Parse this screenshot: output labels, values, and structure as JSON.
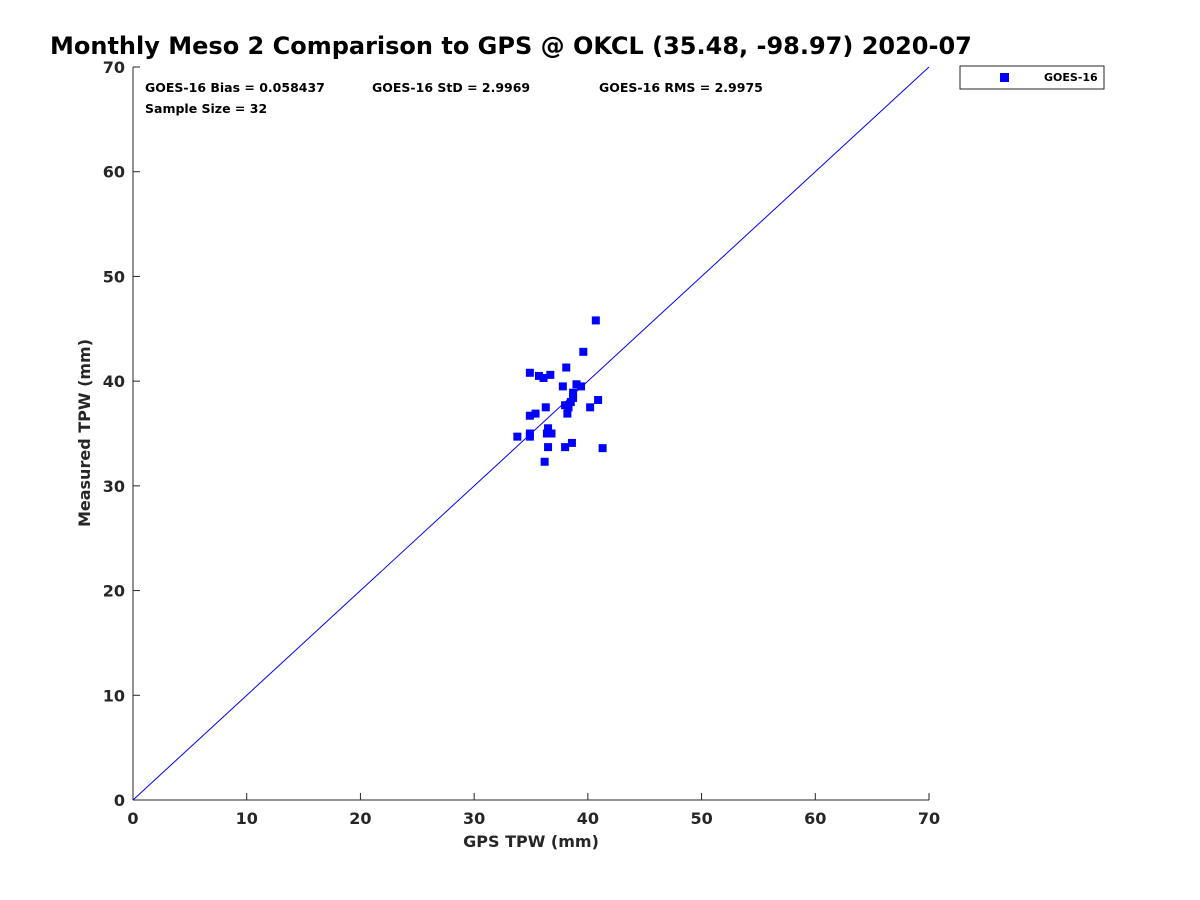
{
  "chart_data": {
    "type": "scatter",
    "title": "Monthly Meso 2 Comparison to GPS @ OKCL (35.48, -98.97) 2020-07",
    "xlabel": "GPS TPW (mm)",
    "ylabel": "Measured TPW (mm)",
    "xlim": [
      0,
      70
    ],
    "ylim": [
      0,
      70
    ],
    "xticks": [
      "0",
      "10",
      "20",
      "30",
      "40",
      "50",
      "60",
      "70"
    ],
    "yticks": [
      "0",
      "10",
      "20",
      "30",
      "40",
      "50",
      "60",
      "70"
    ],
    "grid": false,
    "legend_position": "outside-top-right",
    "reference_line": {
      "x": [
        0,
        70
      ],
      "y": [
        0,
        70
      ],
      "color": "#0000ff"
    },
    "stats": {
      "bias": "GOES-16 Bias = 0.058437",
      "std": "GOES-16 StD = 2.9969",
      "rms": "GOES-16 RMS = 2.9975",
      "sample_size": "Sample Size = 32"
    },
    "series": [
      {
        "name": "GOES-16",
        "color": "#0000ff",
        "marker": "square",
        "points": [
          [
            40.7,
            45.8
          ],
          [
            39.6,
            42.8
          ],
          [
            38.1,
            41.3
          ],
          [
            34.9,
            40.8
          ],
          [
            35.7,
            40.5
          ],
          [
            36.1,
            40.3
          ],
          [
            36.7,
            40.6
          ],
          [
            37.8,
            39.5
          ],
          [
            39.0,
            39.7
          ],
          [
            39.4,
            39.5
          ],
          [
            38.7,
            38.9
          ],
          [
            38.7,
            38.4
          ],
          [
            38.5,
            38.0
          ],
          [
            40.9,
            38.2
          ],
          [
            38.0,
            37.7
          ],
          [
            38.3,
            37.5
          ],
          [
            36.3,
            37.5
          ],
          [
            40.2,
            37.5
          ],
          [
            38.2,
            36.9
          ],
          [
            35.4,
            36.9
          ],
          [
            34.9,
            36.7
          ],
          [
            36.5,
            35.5
          ],
          [
            36.4,
            35.0
          ],
          [
            36.8,
            35.0
          ],
          [
            34.9,
            35.0
          ],
          [
            33.8,
            34.7
          ],
          [
            34.9,
            34.7
          ],
          [
            38.6,
            34.1
          ],
          [
            36.5,
            33.7
          ],
          [
            38.0,
            33.7
          ],
          [
            41.3,
            33.6
          ],
          [
            36.2,
            32.3
          ]
        ]
      }
    ]
  }
}
